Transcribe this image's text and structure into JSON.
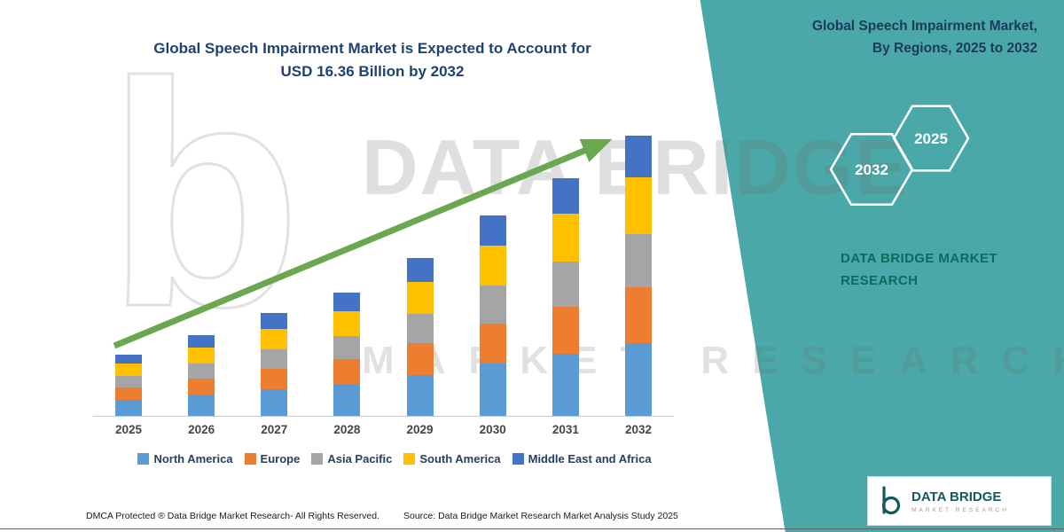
{
  "page": {
    "title_line1": "Global Speech Impairment Market is Expected to Account for",
    "title_line2": "USD 16.36 Billion by 2032"
  },
  "side_panel": {
    "accent_color": "#4BA8A8",
    "heading_line1": "Global Speech Impairment Market,",
    "heading_line2": "By Regions, 2025 to 2032",
    "hexagons": [
      "2032",
      "2025"
    ],
    "brand_line1": "DATA BRIDGE MARKET",
    "brand_line2": "RESEARCH"
  },
  "watermark": {
    "letter": "b",
    "line1": "DATA BRIDGE",
    "line2": "MARKET RESEARCH"
  },
  "logo_card": {
    "name": "DATA BRIDGE",
    "subtext": "MARKET RESEARCH"
  },
  "footer": {
    "dmca": "DMCA Protected ® Data Bridge Market Research-  All Rights Reserved.",
    "source": "Source: Data Bridge Market Research  Market Analysis Study 2025"
  },
  "chart_data": {
    "type": "bar",
    "stacked": true,
    "title": "Global Speech Impairment Market is Expected to Account for USD 16.36 Billion by 2032",
    "unit": "USD Billion",
    "xlabel": "",
    "ylabel": "",
    "ylim": [
      0,
      16.36
    ],
    "grid": false,
    "legend_position": "bottom",
    "arrow_color": "#69A84F",
    "categories": [
      "2025",
      "2026",
      "2027",
      "2028",
      "2029",
      "2030",
      "2031",
      "2032"
    ],
    "totals": [
      3.6,
      4.7,
      6.0,
      7.2,
      9.2,
      11.7,
      13.9,
      16.36
    ],
    "series": [
      {
        "name": "North America",
        "color": "#5B9BD5",
        "values": [
          0.94,
          1.22,
          1.56,
          1.87,
          2.39,
          3.04,
          3.61,
          4.25
        ]
      },
      {
        "name": "Europe",
        "color": "#ED7D31",
        "values": [
          0.72,
          0.94,
          1.2,
          1.44,
          1.84,
          2.34,
          2.78,
          3.27
        ]
      },
      {
        "name": "Asia Pacific",
        "color": "#A5A5A5",
        "values": [
          0.68,
          0.89,
          1.14,
          1.37,
          1.75,
          2.22,
          2.64,
          3.11
        ]
      },
      {
        "name": "South America",
        "color": "#FFC000",
        "values": [
          0.72,
          0.94,
          1.2,
          1.44,
          1.84,
          2.34,
          2.78,
          3.27
        ]
      },
      {
        "name": "Middle East and Africa",
        "color": "#4472C4",
        "values": [
          0.54,
          0.71,
          0.9,
          1.08,
          1.38,
          1.76,
          2.09,
          2.46
        ]
      }
    ]
  }
}
